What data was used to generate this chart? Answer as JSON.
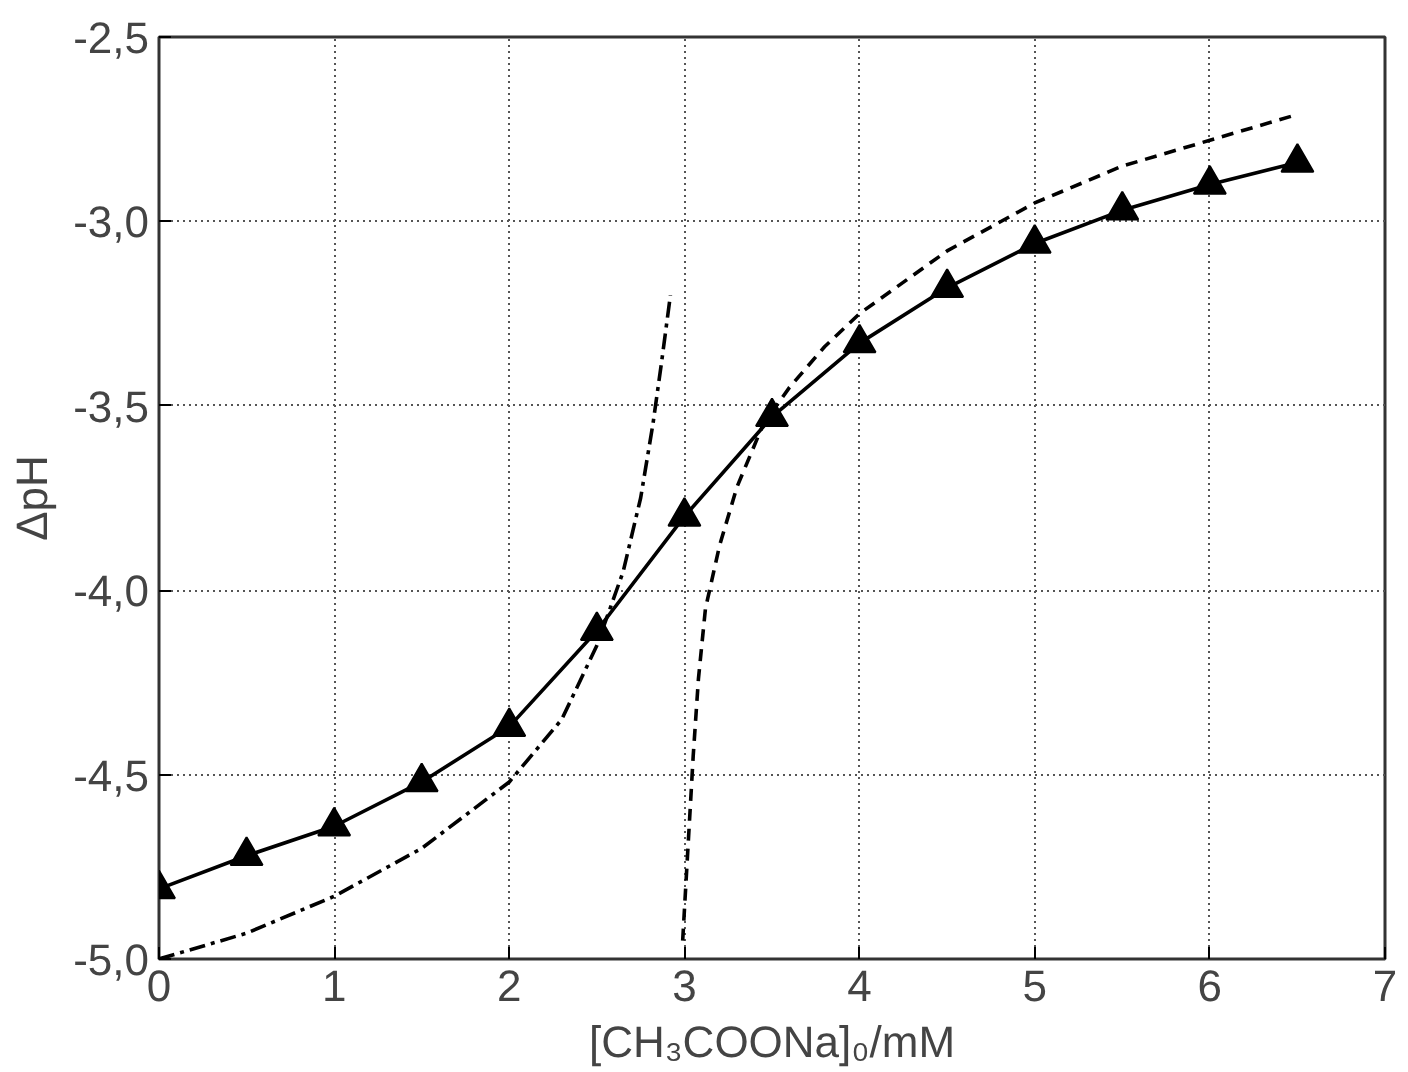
{
  "chart_data": {
    "type": "line",
    "xlabel": "[CH₃COONa]₀/mM",
    "ylabel": "ΔpH",
    "xlim": [
      0,
      7
    ],
    "ylim": [
      -5.0,
      -2.5
    ],
    "xticks": [
      0,
      1,
      2,
      3,
      4,
      5,
      6,
      7
    ],
    "yticks": [
      {
        "value": -5.0,
        "label": "-5,0"
      },
      {
        "value": -4.5,
        "label": "-4,5"
      },
      {
        "value": -4.0,
        "label": "-4,0"
      },
      {
        "value": -3.5,
        "label": "-3,5"
      },
      {
        "value": -3.0,
        "label": "-3,0"
      },
      {
        "value": -2.5,
        "label": "-2,5"
      }
    ],
    "grid": true,
    "series": [
      {
        "color": "#000000",
        "marker": "triangle",
        "line_style": "solid",
        "x": [
          0,
          0.5,
          1,
          1.5,
          2,
          2.5,
          3,
          3.5,
          4,
          4.5,
          5,
          5.5,
          6,
          6.5
        ],
        "values": [
          -4.81,
          -4.72,
          -4.64,
          -4.52,
          -4.37,
          -4.11,
          -3.8,
          -3.53,
          -3.33,
          -3.18,
          -3.06,
          -2.97,
          -2.9,
          -2.84
        ]
      },
      {
        "color": "#000000",
        "marker": "none",
        "line_style": "dashed",
        "x": [
          2.99,
          3.02,
          3.05,
          3.08,
          3.12,
          3.2,
          3.3,
          3.45,
          3.6,
          3.8,
          4.0,
          4.5,
          5.0,
          5.5,
          6.0,
          6.5
        ],
        "values": [
          -4.95,
          -4.7,
          -4.45,
          -4.24,
          -4.05,
          -3.88,
          -3.72,
          -3.55,
          -3.45,
          -3.34,
          -3.25,
          -3.08,
          -2.95,
          -2.85,
          -2.78,
          -2.71
        ]
      },
      {
        "color": "#000000",
        "marker": "none",
        "line_style": "dashdot",
        "x": [
          0,
          0.5,
          1,
          1.5,
          2,
          2.3,
          2.5,
          2.65,
          2.75,
          2.82,
          2.87,
          2.92
        ],
        "values": [
          -5.0,
          -4.93,
          -4.83,
          -4.7,
          -4.52,
          -4.35,
          -4.15,
          -3.95,
          -3.75,
          -3.55,
          -3.38,
          -3.2
        ]
      }
    ]
  }
}
